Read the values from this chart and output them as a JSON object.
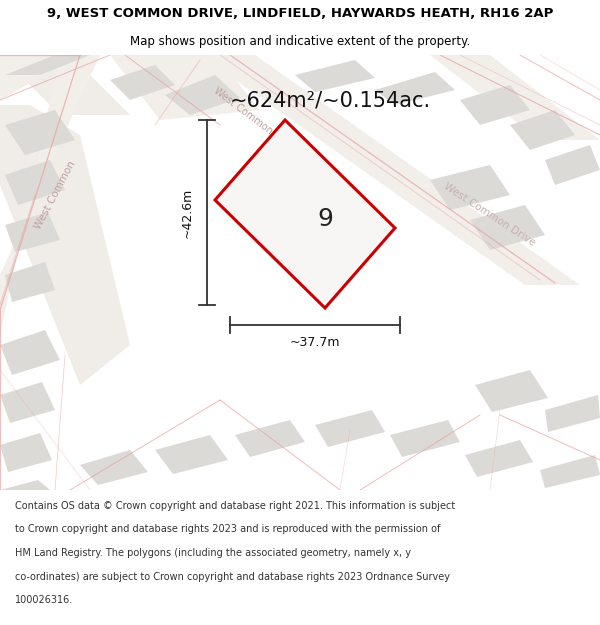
{
  "title_line1": "9, WEST COMMON DRIVE, LINDFIELD, HAYWARDS HEATH, RH16 2AP",
  "title_line2": "Map shows position and indicative extent of the property.",
  "area_text": "~624m²/~0.154ac.",
  "label_9": "9",
  "dim_width": "~37.7m",
  "dim_height": "~42.6m",
  "footer_lines": [
    "Contains OS data © Crown copyright and database right 2021. This information is subject",
    "to Crown copyright and database rights 2023 and is reproduced with the permission of",
    "HM Land Registry. The polygons (including the associated geometry, namely x, y",
    "co-ordinates) are subject to Crown copyright and database rights 2023 Ordnance Survey",
    "100026316."
  ],
  "map_bg": "#ffffff",
  "road_fill": "#f0ece8",
  "block_fill": "#dcdad6",
  "block_edge": "#c8c6c2",
  "highlight_fill": "#f8f6f4",
  "highlight_edge": "#cc0000",
  "road_line_color": "#e8a0a0",
  "street_label_color": "#c0a0a0",
  "dim_line_color": "#333333",
  "title_fontsize": 9.5,
  "subtitle_fontsize": 8.5,
  "area_fontsize": 15,
  "label_fontsize": 18,
  "dim_fontsize": 9,
  "footer_fontsize": 7.0,
  "street_fontsize": 7.5
}
